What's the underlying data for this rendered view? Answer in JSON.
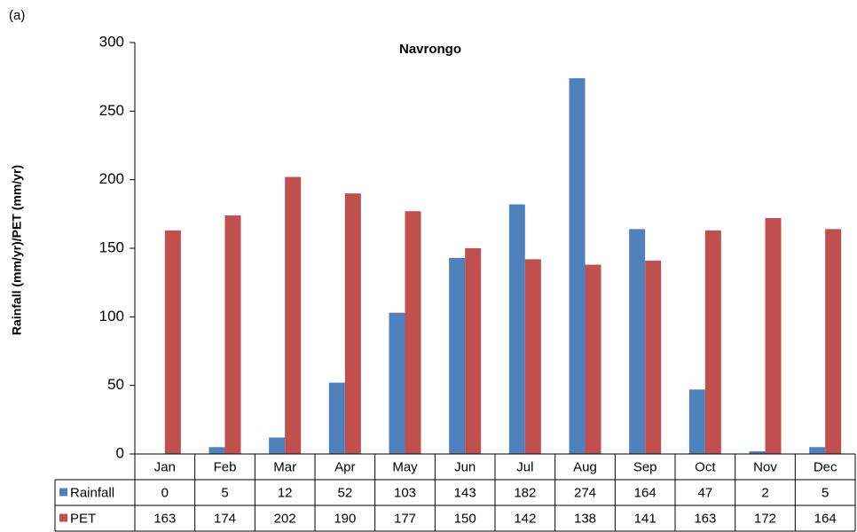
{
  "chart_data": {
    "type": "bar",
    "panel_label": "(a)",
    "title": "Navrongo",
    "y_label": "Rainfall (mm/yr)/PET (mm/yr)",
    "categories": [
      "Jan",
      "Feb",
      "Mar",
      "Apr",
      "May",
      "Jun",
      "Jul",
      "Aug",
      "Sep",
      "Oct",
      "Nov",
      "Dec"
    ],
    "series": [
      {
        "name": "Rainfall",
        "color": "#4f81bd",
        "values": [
          0,
          5,
          12,
          52,
          103,
          143,
          182,
          274,
          164,
          47,
          2,
          5
        ]
      },
      {
        "name": "PET",
        "color": "#c0504d",
        "values": [
          163,
          174,
          202,
          190,
          177,
          150,
          142,
          138,
          141,
          163,
          172,
          164
        ]
      }
    ],
    "ylim": [
      0,
      300
    ],
    "yticks": [
      0,
      50,
      100,
      150,
      200,
      250,
      300
    ],
    "grid": false,
    "data_table": true
  }
}
